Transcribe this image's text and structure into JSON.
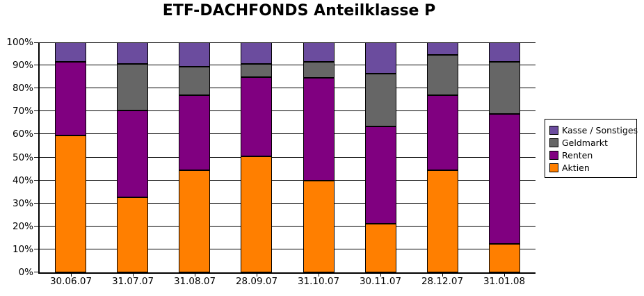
{
  "title": "ETF-DACHFONDS Anteilklasse P",
  "chart_data": {
    "type": "bar",
    "stacked": true,
    "title": "ETF-DACHFONDS Anteilklasse P",
    "categories": [
      "30.06.07",
      "31.07.07",
      "31.08.07",
      "28.09.07",
      "31.10.07",
      "30.11.07",
      "28.12.07",
      "31.01.08"
    ],
    "series": [
      {
        "name": "Aktien",
        "color": "#FF7F00",
        "values": [
          59.5,
          32.5,
          44.5,
          50.5,
          40.0,
          21.0,
          44.5,
          12.5
        ]
      },
      {
        "name": "Renten",
        "color": "#800080",
        "values": [
          32.0,
          38.0,
          32.5,
          34.5,
          44.5,
          42.5,
          32.5,
          56.5
        ]
      },
      {
        "name": "Geldmarkt",
        "color": "#666666",
        "values": [
          0.0,
          20.0,
          12.5,
          5.5,
          7.0,
          23.0,
          17.5,
          22.5
        ]
      },
      {
        "name": "Kasse / Sonstiges",
        "color": "#6B4C9E",
        "values": [
          8.5,
          9.5,
          10.5,
          9.5,
          8.5,
          13.5,
          5.5,
          8.5
        ]
      }
    ],
    "xlabel": "",
    "ylabel": "",
    "ylim": [
      0,
      100
    ],
    "y_tick_step": 10,
    "y_tick_labels": [
      "0%",
      "10%",
      "20%",
      "30%",
      "40%",
      "50%",
      "60%",
      "70%",
      "80%",
      "90%",
      "100%"
    ],
    "grid": true,
    "legend_position": "right",
    "legend_order": [
      "Kasse / Sonstiges",
      "Geldmarkt",
      "Renten",
      "Aktien"
    ],
    "axis_color": "#000000",
    "background_color": "#FFFFFF"
  }
}
